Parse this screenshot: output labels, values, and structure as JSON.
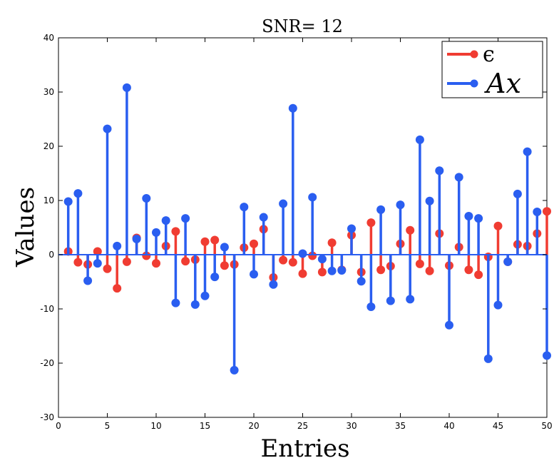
{
  "chart_data": {
    "type": "stem",
    "title": "SNR= 12",
    "xlabel": "Entries",
    "ylabel": "Values",
    "xlim": [
      0,
      50
    ],
    "ylim": [
      -30,
      40
    ],
    "xticks": [
      0,
      5,
      10,
      15,
      20,
      25,
      30,
      35,
      40,
      45,
      50
    ],
    "yticks": [
      -30,
      -20,
      -10,
      0,
      10,
      20,
      30,
      40
    ],
    "legend_position": "top-right",
    "x": [
      1,
      2,
      3,
      4,
      5,
      6,
      7,
      8,
      9,
      10,
      11,
      12,
      13,
      14,
      15,
      16,
      17,
      18,
      19,
      20,
      21,
      22,
      23,
      24,
      25,
      26,
      27,
      28,
      29,
      30,
      31,
      32,
      33,
      34,
      35,
      36,
      37,
      38,
      39,
      40,
      41,
      42,
      43,
      44,
      45,
      46,
      47,
      48,
      49,
      50
    ],
    "series": [
      {
        "name": "ϵ",
        "color": "#f03c32",
        "values": [
          0.6,
          -1.4,
          -1.8,
          0.6,
          -2.6,
          -6.2,
          -1.3,
          3.1,
          -0.2,
          -1.6,
          1.6,
          4.3,
          -1.2,
          -0.9,
          2.4,
          2.7,
          -2.0,
          -1.8,
          1.3,
          2.0,
          4.7,
          -4.2,
          -1.0,
          -1.4,
          -3.5,
          -0.2,
          -3.2,
          2.2,
          -2.8,
          3.6,
          -3.2,
          5.9,
          -2.8,
          -2.1,
          2.0,
          4.5,
          -1.7,
          -3.0,
          3.9,
          -2.0,
          1.4,
          -2.8,
          -3.7,
          -0.4,
          5.3,
          -1.3,
          1.9,
          1.6,
          3.9,
          8.0
        ]
      },
      {
        "name": "Ax",
        "color": "#2a5ef0",
        "values": [
          9.8,
          11.3,
          -4.8,
          -1.6,
          23.2,
          1.6,
          30.8,
          2.9,
          10.4,
          4.1,
          6.3,
          -8.9,
          6.7,
          -9.2,
          -7.6,
          -4.1,
          1.4,
          -21.3,
          8.8,
          -3.6,
          6.9,
          -5.5,
          9.4,
          27.0,
          0.2,
          10.6,
          -0.8,
          -3.0,
          -2.9,
          4.8,
          -4.9,
          -9.6,
          8.3,
          -8.5,
          9.2,
          -8.2,
          21.2,
          9.9,
          15.5,
          -13.0,
          14.3,
          7.1,
          6.7,
          -19.2,
          -9.3,
          -1.3,
          11.2,
          19.0,
          7.9,
          -18.6
        ]
      }
    ]
  }
}
